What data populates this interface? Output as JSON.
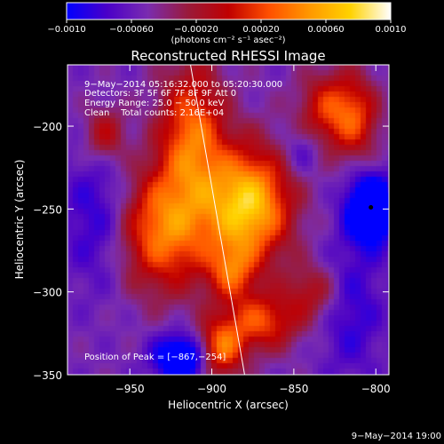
{
  "chart_data": {
    "type": "heatmap",
    "title": "Reconstructed RHESSI Image",
    "xlabel": "Heliocentric X (arcsec)",
    "ylabel": "Heliocentric Y (arcsec)",
    "xlim": [
      -988,
      -792
    ],
    "ylim": [
      -350,
      -163
    ],
    "x_ticks": [
      -950,
      -900,
      -850,
      -800
    ],
    "y_ticks": [
      -200,
      -250,
      -300,
      -350
    ],
    "x_tick_labels": [
      "−950",
      "−900",
      "−850",
      "−800"
    ],
    "y_tick_labels": [
      "−200",
      "−250",
      "−300",
      "−350"
    ],
    "colorbar": {
      "range": [
        -0.001,
        0.001
      ],
      "tick_labels": [
        "−0.0010",
        "−0.00060",
        "−0.00020",
        "0.00020",
        "0.00060",
        "0.0010"
      ],
      "units_label": "(photons cm⁻² s⁻¹ asec⁻²)",
      "colors": [
        "#0000ff",
        "#4a00c8",
        "#7a2cb0",
        "#9a1a3a",
        "#c00000",
        "#ff5000",
        "#ff9800",
        "#ffd200",
        "#ffffff"
      ]
    },
    "annotations": [
      "9−May−2014 05:16:32.000 to 05:20:30.000",
      "Detectors: 3F 5F 6F 7F 8F 9F Att 0",
      "Energy Range: 25.0 − 50.0 keV",
      "Clean    Total counts: 2.16E+04"
    ],
    "peak_label": "Position of Peak = [−867,−254]",
    "peak_position": [
      -867,
      -254
    ],
    "marker_position": [
      -803,
      -249
    ],
    "limb_line": [
      [
        -913,
        -163
      ],
      [
        -880,
        -350
      ]
    ],
    "intensity_sources": [
      {
        "x": -878,
        "y": -248,
        "sx": 18,
        "sy": 24,
        "amp": 1.15
      },
      {
        "x": -912,
        "y": -205,
        "sx": 14,
        "sy": 30,
        "amp": 0.75
      },
      {
        "x": -930,
        "y": -262,
        "sx": 20,
        "sy": 26,
        "amp": 0.85
      },
      {
        "x": -965,
        "y": -205,
        "sx": 9,
        "sy": 12,
        "amp": 0.45
      },
      {
        "x": -830,
        "y": -190,
        "sx": 12,
        "sy": 16,
        "amp": 0.55
      },
      {
        "x": -812,
        "y": -195,
        "sx": 10,
        "sy": 18,
        "amp": 0.55
      },
      {
        "x": -870,
        "y": -318,
        "sx": 16,
        "sy": 12,
        "amp": 0.65
      },
      {
        "x": -895,
        "y": -335,
        "sx": 10,
        "sy": 12,
        "amp": 0.8
      },
      {
        "x": -888,
        "y": -288,
        "sx": 10,
        "sy": 12,
        "amp": 0.55
      },
      {
        "x": -838,
        "y": -300,
        "sx": 12,
        "sy": 12,
        "amp": 0.4
      },
      {
        "x": -803,
        "y": -250,
        "sx": 10,
        "sy": 14,
        "amp": -1.0
      },
      {
        "x": -918,
        "y": -340,
        "sx": 12,
        "sy": 10,
        "amp": -0.8
      },
      {
        "x": -968,
        "y": -255,
        "sx": 16,
        "sy": 30,
        "amp": -0.35
      },
      {
        "x": -815,
        "y": -310,
        "sx": 14,
        "sy": 30,
        "amp": -0.3
      },
      {
        "x": -845,
        "y": -215,
        "sx": 8,
        "sy": 10,
        "amp": -0.25
      }
    ]
  },
  "footer_timestamp": "9−May−2014 19:00"
}
